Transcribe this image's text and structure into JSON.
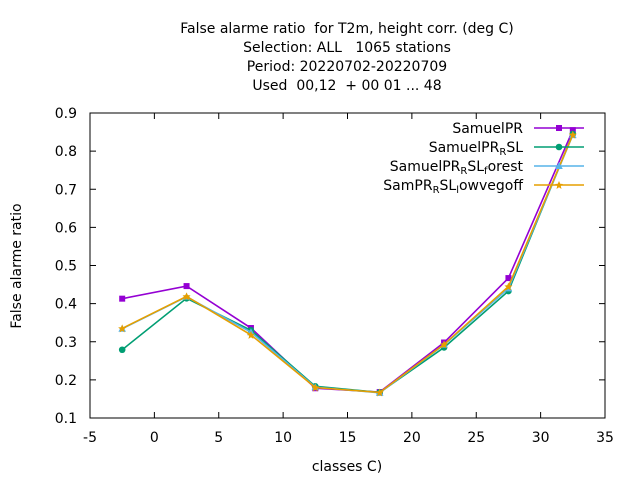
{
  "chart_data": {
    "type": "line",
    "title_lines": [
      "False alarme ratio  for T2m, height corr. (deg C)",
      "Selection: ALL   1065 stations",
      "Period: 20220702-20220709",
      "Used  00,12  + 00 01 ... 48"
    ],
    "xlabel": "classes C)",
    "ylabel": "False alarme ratio",
    "xlim": [
      -5,
      35
    ],
    "ylim": [
      0.1,
      0.9
    ],
    "xticks": [
      -5,
      0,
      5,
      10,
      15,
      20,
      25,
      30,
      35
    ],
    "yticks": [
      0.1,
      0.2,
      0.3,
      0.4,
      0.5,
      0.6,
      0.7,
      0.8,
      0.9
    ],
    "x": [
      -2.5,
      2.5,
      7.5,
      12.5,
      17.5,
      22.5,
      27.5,
      32.5
    ],
    "legend_position": "top-right",
    "series": [
      {
        "name": "SamuelPR",
        "label_parts": [
          [
            "SamuelPR",
            ""
          ]
        ],
        "color": "#9400d3",
        "marker": "square",
        "values": [
          0.413,
          0.446,
          0.336,
          0.178,
          0.168,
          0.298,
          0.467,
          0.855
        ]
      },
      {
        "name": "SamuelPR_R SL",
        "label_parts": [
          [
            "SamuelPR",
            ""
          ],
          [
            "R",
            "sub"
          ],
          [
            "SL",
            ""
          ]
        ],
        "color": "#009e73",
        "marker": "circle",
        "values": [
          0.279,
          0.414,
          0.33,
          0.183,
          0.167,
          0.285,
          0.433,
          0.845
        ]
      },
      {
        "name": "SamuelPR_R SL_f orest",
        "label_parts": [
          [
            "SamuelPR",
            ""
          ],
          [
            "R",
            "sub"
          ],
          [
            "SL",
            ""
          ],
          [
            "f",
            "sub"
          ],
          [
            "orest",
            ""
          ]
        ],
        "color": "#56b4e9",
        "marker": "triangle",
        "values": [
          0.334,
          0.418,
          0.325,
          0.181,
          0.166,
          0.292,
          0.44,
          0.842
        ]
      },
      {
        "name": "SamPR_R SL_l owvegoff",
        "label_parts": [
          [
            "SamPR",
            ""
          ],
          [
            "R",
            "sub"
          ],
          [
            "SL",
            ""
          ],
          [
            "l",
            "sub"
          ],
          [
            "owvegoff",
            ""
          ]
        ],
        "color": "#e69f00",
        "marker": "star",
        "values": [
          0.335,
          0.419,
          0.318,
          0.18,
          0.167,
          0.293,
          0.445,
          0.843
        ]
      }
    ]
  }
}
